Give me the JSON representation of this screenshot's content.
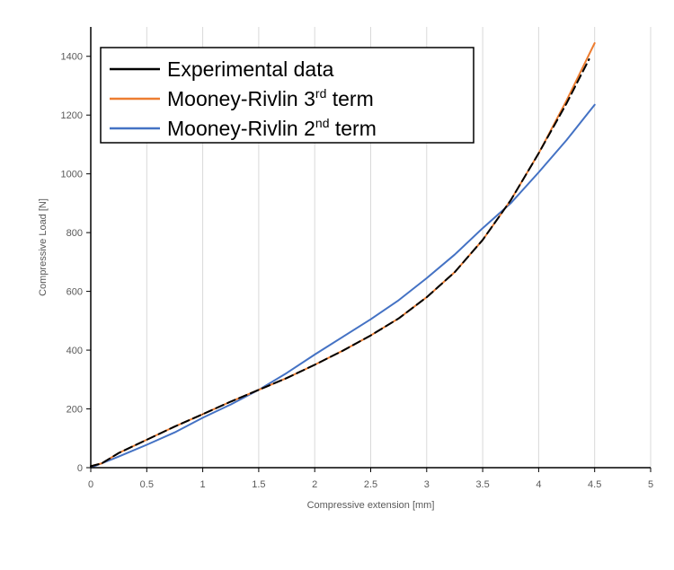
{
  "chart_data": {
    "type": "line",
    "title": "",
    "xlabel": "Compressive extension [mm]",
    "ylabel": "Compressive Load [N]",
    "xlim": [
      0,
      5
    ],
    "ylim": [
      0,
      1500
    ],
    "xticks": [
      0,
      0.5,
      1,
      1.5,
      2,
      2.5,
      3,
      3.5,
      4,
      4.5,
      5
    ],
    "xtick_labels": [
      "0",
      "0.5",
      "1",
      "1.5",
      "2",
      "2.5",
      "3",
      "3.5",
      "4",
      "4.5",
      "5"
    ],
    "yticks": [
      0,
      200,
      400,
      600,
      800,
      1000,
      1200,
      1400
    ],
    "ytick_labels": [
      "0",
      "200",
      "400",
      "600",
      "800",
      "1000",
      "1200",
      "1400"
    ],
    "grid": "vertical",
    "legend_position": "top-left",
    "series": [
      {
        "name": "Experimental data",
        "color": "#000000",
        "x": [
          0,
          0.1,
          0.25,
          0.5,
          0.75,
          1.0,
          1.25,
          1.5,
          1.75,
          2.0,
          2.25,
          2.5,
          2.75,
          3.0,
          3.25,
          3.5,
          3.75,
          4.0,
          4.25,
          4.45
        ],
        "y": [
          5,
          15,
          50,
          95,
          140,
          182,
          225,
          265,
          305,
          350,
          398,
          450,
          508,
          580,
          665,
          775,
          910,
          1070,
          1240,
          1390
        ]
      },
      {
        "name": "Mooney-Rivlin 3rd term",
        "name_main": "Mooney-Rivlin 3",
        "name_sup": "rd",
        "name_suffix": " term",
        "color": "#ED7D31",
        "x": [
          0,
          0.1,
          0.25,
          0.5,
          0.75,
          1.0,
          1.25,
          1.5,
          1.75,
          2.0,
          2.25,
          2.5,
          2.75,
          3.0,
          3.25,
          3.5,
          3.75,
          4.0,
          4.25,
          4.5
        ],
        "y": [
          5,
          15,
          50,
          95,
          140,
          182,
          225,
          265,
          305,
          350,
          398,
          450,
          508,
          580,
          665,
          775,
          910,
          1070,
          1250,
          1445
        ]
      },
      {
        "name": "Mooney-Rivlin 2nd term",
        "name_main": "Mooney-Rivlin 2",
        "name_sup": "nd",
        "name_suffix": " term",
        "color": "#4472C4",
        "x": [
          0,
          0.25,
          0.5,
          0.75,
          1.0,
          1.25,
          1.5,
          1.75,
          2.0,
          2.25,
          2.5,
          2.75,
          3.0,
          3.25,
          3.5,
          3.75,
          4.0,
          4.25,
          4.5
        ],
        "y": [
          0,
          38,
          78,
          120,
          170,
          215,
          265,
          322,
          385,
          445,
          505,
          570,
          645,
          725,
          815,
          900,
          1005,
          1115,
          1235
        ]
      }
    ]
  }
}
